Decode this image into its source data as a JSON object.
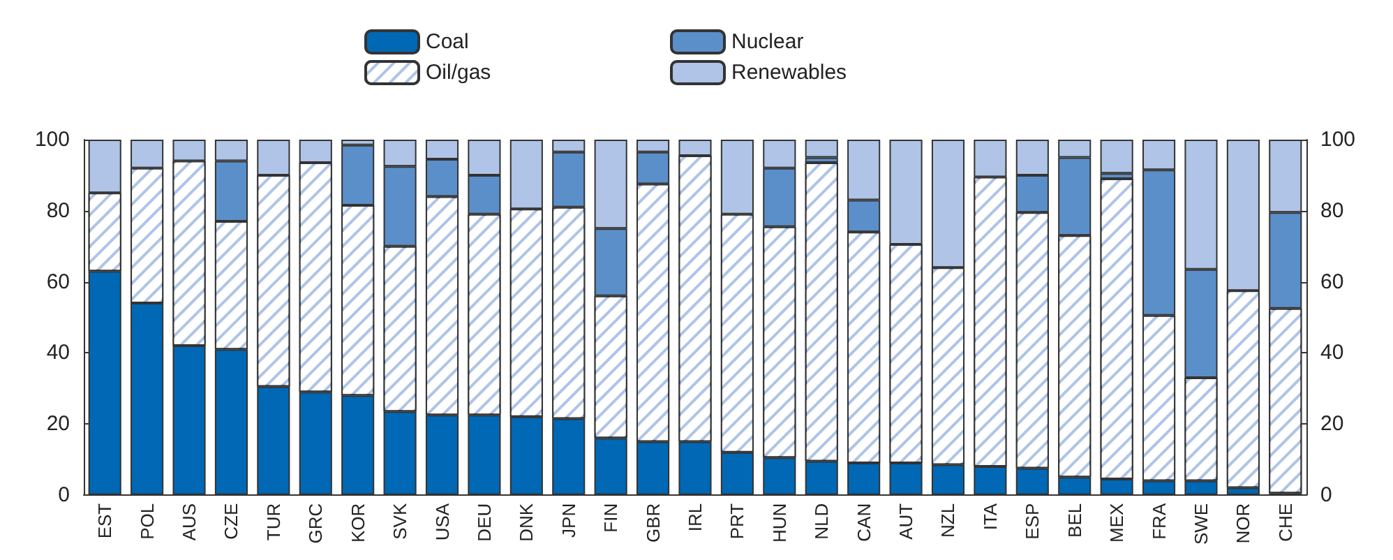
{
  "chart_data": {
    "type": "bar",
    "stacked": true,
    "legend": "top",
    "grid": false,
    "categories": [
      "EST",
      "POL",
      "AUS",
      "CZE",
      "TUR",
      "GRC",
      "KOR",
      "SVK",
      "USA",
      "DEU",
      "DNK",
      "JPN",
      "FIN",
      "GBR",
      "IRL",
      "PRT",
      "HUN",
      "NLD",
      "CAN",
      "AUT",
      "NZL",
      "ITA",
      "ESP",
      "BEL",
      "MEX",
      "FRA",
      "SWE",
      "NOR",
      "CHE"
    ],
    "series": [
      {
        "name": "Coal",
        "color": "#0068b4",
        "values": [
          63,
          54,
          42,
          41,
          30.5,
          29,
          28,
          23.5,
          22.5,
          22.5,
          22,
          21.5,
          16,
          15,
          15,
          12,
          10.5,
          9.5,
          9,
          9,
          8.5,
          8,
          7.5,
          5,
          4.5,
          4,
          4,
          2,
          0.5
        ]
      },
      {
        "name": "Oil/gas",
        "color": "#aec4e8",
        "values": [
          22,
          38,
          52,
          36,
          59.5,
          64.5,
          53.5,
          46.5,
          61.5,
          56.5,
          58.5,
          59.5,
          40,
          72.5,
          80.5,
          67,
          65,
          84,
          65,
          61.5,
          55.5,
          81.5,
          72,
          68,
          84.5,
          46.5,
          29,
          55.5,
          52
        ]
      },
      {
        "name": "Nuclear",
        "color": "#5b8fc9",
        "values": [
          0,
          0,
          0,
          17,
          0,
          0,
          17,
          22.5,
          10.5,
          11,
          0,
          15.5,
          19,
          9,
          0,
          0,
          16.5,
          1.5,
          9,
          0,
          0,
          0,
          10.5,
          22,
          1.5,
          41,
          30.5,
          0,
          27
        ]
      },
      {
        "name": "Renewables",
        "color": "#afc4e6",
        "values": [
          15,
          8,
          6,
          6,
          10,
          6.5,
          1.5,
          7.5,
          5.5,
          10,
          19.5,
          3.5,
          25,
          3.5,
          4.5,
          21,
          8,
          5,
          17,
          29.5,
          36,
          10.5,
          10,
          5,
          9.5,
          8.5,
          36.5,
          42.5,
          20.5
        ]
      }
    ],
    "ylim": [
      0,
      100
    ],
    "yticks": [
      0,
      20,
      40,
      60,
      80,
      100
    ],
    "y2lim": [
      0,
      100
    ],
    "y2ticks": [
      0,
      20,
      40,
      60,
      80,
      100
    ]
  }
}
